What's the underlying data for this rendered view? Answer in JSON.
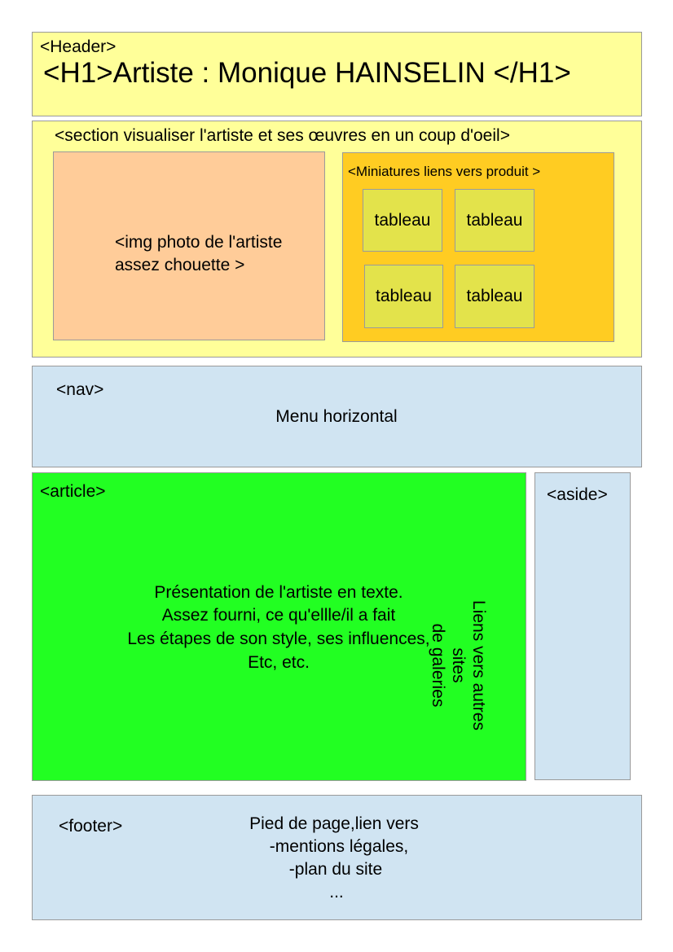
{
  "header": {
    "tag": "<Header>",
    "h1": "<H1>Artiste : Monique HAINSELIN </H1>"
  },
  "section": {
    "tag": "<section visualiser l'artiste et ses œuvres en un coup d'oeil>",
    "photo_lines": [
      "<img photo de l'artiste",
      "assez chouette >"
    ],
    "miniatures": {
      "tag": "<Miniatures liens vers produit >",
      "items": [
        "tableau",
        "tableau",
        "tableau",
        "tableau"
      ]
    }
  },
  "nav": {
    "tag": "<nav>",
    "text": "Menu horizontal"
  },
  "article": {
    "tag": "<article>",
    "lines": [
      "Présentation de l'artiste en texte.",
      "Assez fourni, ce qu'ellle/il a fait",
      "Les étapes de son style, ses influences,",
      "Etc, etc."
    ]
  },
  "aside": {
    "tag": "<aside>",
    "lines": [
      "Liens vers autres sites",
      "de galeries"
    ]
  },
  "footer": {
    "tag": "<footer>",
    "lines": [
      "Pied de page,lien vers",
      "-mentions légales,",
      "-plan du site",
      "..."
    ]
  }
}
